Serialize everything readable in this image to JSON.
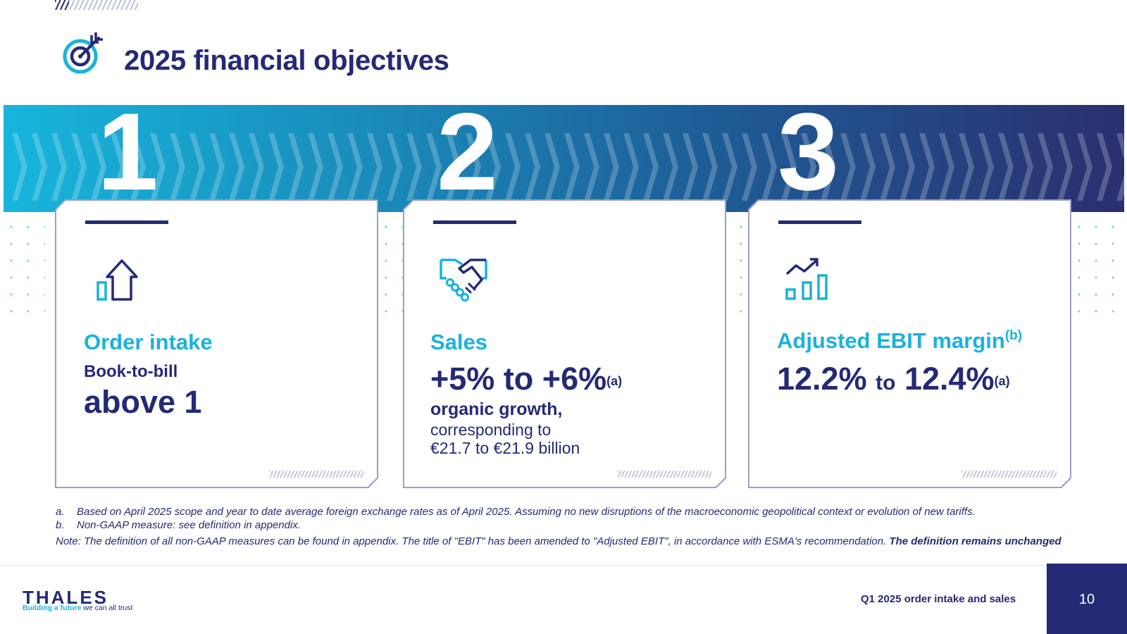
{
  "title": "2025 financial objectives",
  "icons": {
    "title": "target-arrow-icon"
  },
  "colors": {
    "navy": "#242a75",
    "cyan": "#1ab2dc",
    "band_start": "#17b5dc",
    "band_end": "#2a2f6f"
  },
  "cards": [
    {
      "number": "1",
      "icon": "arrow-up-bar-icon",
      "label": "Order intake",
      "subtitle": "Book-to-bill",
      "value": "above 1"
    },
    {
      "number": "2",
      "icon": "handshake-icon",
      "label": "Sales",
      "value": "+5% to +6%",
      "value_note": "(a)",
      "detail_bold": "organic growth,",
      "detail_line1": "corresponding to",
      "detail_line2": "€21.7 to €21.9 billion"
    },
    {
      "number": "3",
      "icon": "growth-chart-icon",
      "label": "Adjusted EBIT margin",
      "label_note": "(b)",
      "value_low": "12.2%",
      "value_connector": "to",
      "value_high": "12.4%",
      "value_note": "(a)"
    }
  ],
  "footnotes": [
    {
      "mark": "a.",
      "text": "Based on April 2025 scope and year to date average foreign exchange rates as of April 2025. Assuming no new disruptions of the macroeconomic geopolitical context or evolution of new tariffs."
    },
    {
      "mark": "b.",
      "text": "Non-GAAP measure: see definition in appendix."
    }
  ],
  "note": {
    "text": "Note: The definition of all non-GAAP measures can be found in appendix.  The title of \"EBIT\" has been amended to \"Adjusted EBIT\", in accordance with ESMA's recommendation. ",
    "bold": "The definition remains unchanged"
  },
  "footer": {
    "logo": "THALES",
    "tagline_bold": "Building a future",
    "tagline_rest": " we can all trust",
    "caption": "Q1 2025 order intake and sales",
    "page_number": "10"
  }
}
